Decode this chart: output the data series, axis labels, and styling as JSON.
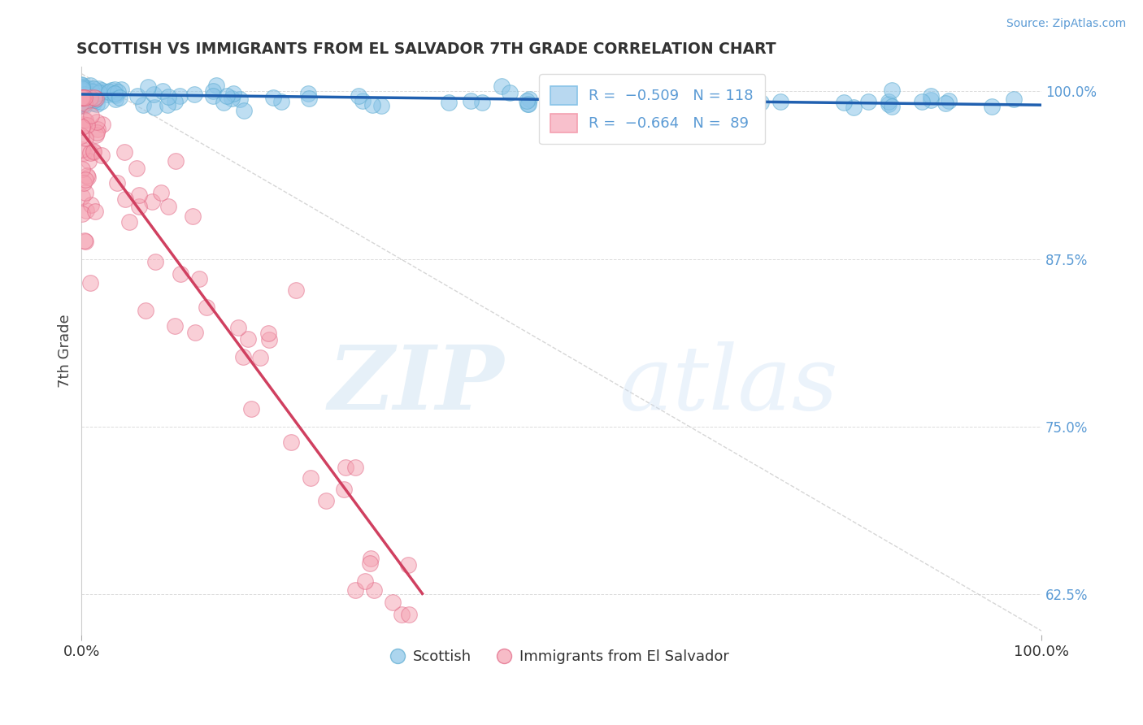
{
  "title": "SCOTTISH VS IMMIGRANTS FROM EL SALVADOR 7TH GRADE CORRELATION CHART",
  "source": "Source: ZipAtlas.com",
  "ylabel": "7th Grade",
  "legend_bottom": [
    "Scottish",
    "Immigrants from El Salvador"
  ],
  "yticks": [
    0.625,
    0.75,
    0.875,
    1.0
  ],
  "ytick_labels": [
    "62.5%",
    "75.0%",
    "87.5%",
    "100.0%"
  ],
  "blue_color": "#89c4e8",
  "blue_edge_color": "#5aaad0",
  "pink_color": "#f4a0b0",
  "pink_edge_color": "#e06080",
  "blue_line_color": "#2060b0",
  "pink_line_color": "#d04060",
  "diag_line_color": "#cccccc",
  "background_color": "#ffffff",
  "grid_color": "#cccccc",
  "title_color": "#333333",
  "source_color": "#5b9bd5",
  "ymin": 0.595,
  "ymax": 1.018,
  "xmin": 0.0,
  "xmax": 1.0
}
